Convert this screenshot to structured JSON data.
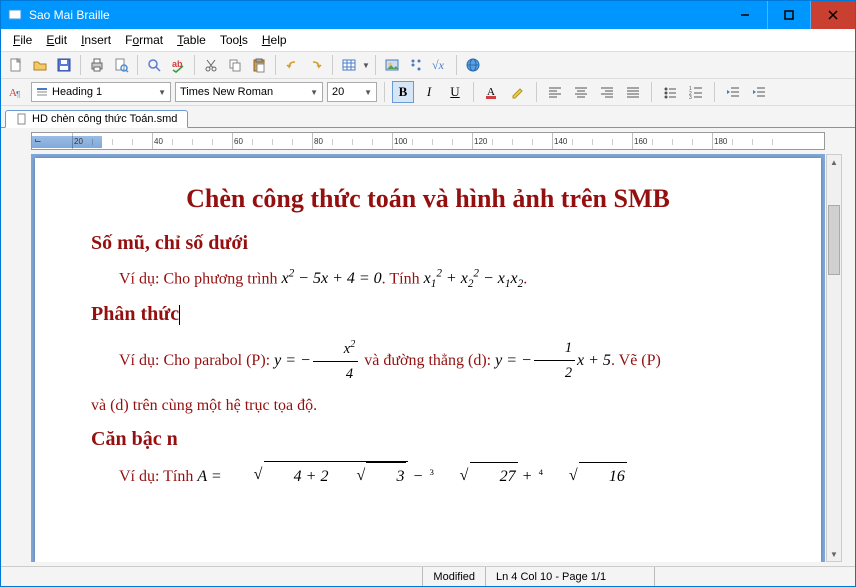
{
  "window": {
    "title": "Sao Mai Braille"
  },
  "menu": {
    "file": "File",
    "edit": "Edit",
    "insert": "Insert",
    "format": "Format",
    "table": "Table",
    "tools": "Tools",
    "help": "Help"
  },
  "toolbar2": {
    "style_label": "Heading 1",
    "font_label": "Times New Roman",
    "size_label": "20",
    "bold": "B",
    "italic": "I",
    "underline": "U"
  },
  "tab": {
    "filename": "HD chèn công thức Toán.smd"
  },
  "ruler": {
    "marks": [
      "20",
      "40",
      "60",
      "80",
      "100",
      "120",
      "140",
      "160",
      "180"
    ]
  },
  "document": {
    "h1": "Chèn công thức toán và hình ảnh trên SMB",
    "h2a": "Số mũ, chỉ số dưới",
    "p1_pre": "Ví dụ: Cho phương trình ",
    "p1_mid": ". Tính ",
    "p1_end": ".",
    "h2b": "Phân thức",
    "p2_pre": "Ví dụ: Cho parabol (P):  ",
    "p2_mid": "  và đường thẳng (d):  ",
    "p2_after": ".  Vẽ (P)",
    "p2_line2": "và (d) trên cùng một hệ trục tọa độ.",
    "h2c": "Căn bậc n",
    "p3_pre": "Ví dụ: Tính "
  },
  "status": {
    "modified": "Modified",
    "pos": "Ln 4 Col 10 - Page 1/1"
  },
  "colors": {
    "titlebar": "#0096ff",
    "close": "#c94030",
    "accent": "#6b99d1",
    "doc_text": "#941010",
    "ruler_band": "#7fa9d9"
  }
}
